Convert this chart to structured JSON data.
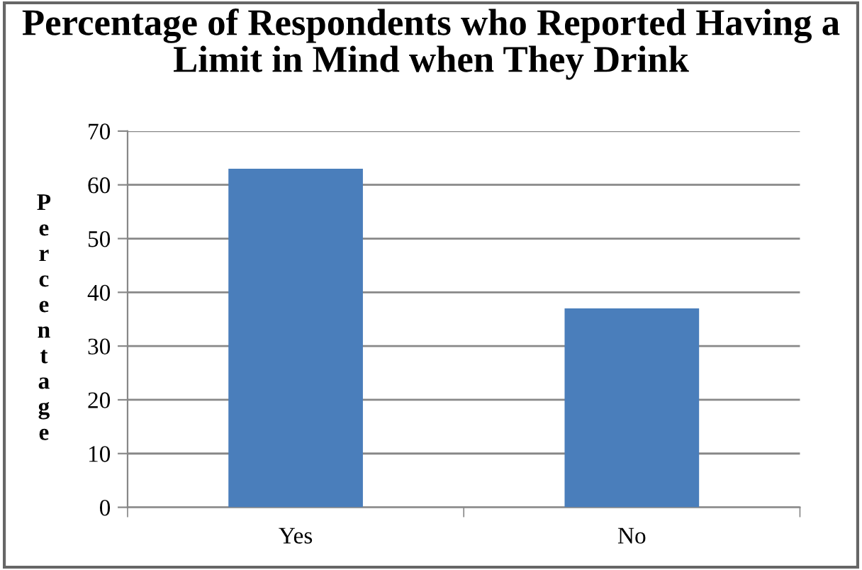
{
  "chart_data": {
    "type": "bar",
    "title": "Percentage of Respondents who Reported Having a Limit in Mind when They Drink",
    "ylabel": "Percentage",
    "categories": [
      "Yes",
      "No"
    ],
    "values": [
      63,
      37
    ],
    "color": "#4a7ebb",
    "ylim": [
      0,
      70
    ],
    "yticks": [
      0,
      10,
      20,
      30,
      40,
      50,
      60,
      70
    ],
    "grid": "y",
    "legend": false
  }
}
